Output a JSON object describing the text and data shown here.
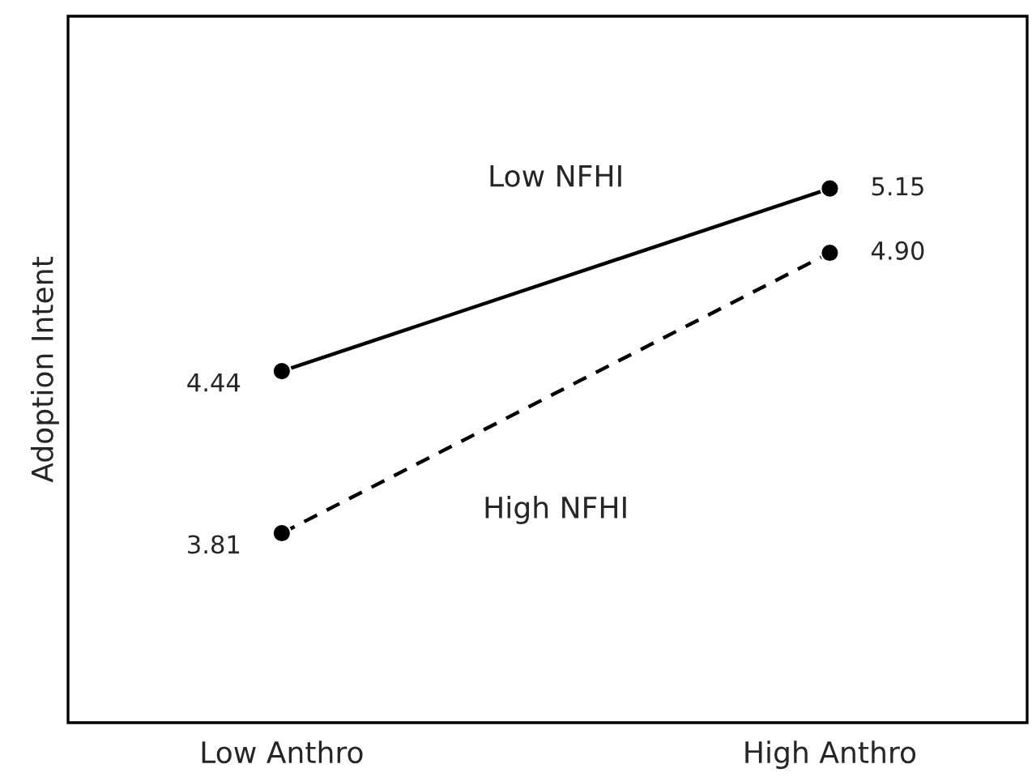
{
  "chart_data": {
    "type": "line",
    "ylabel": "Adoption Intent",
    "categories": [
      "Low Anthro",
      "High Anthro"
    ],
    "series": [
      {
        "name": "Low NFHI",
        "color": "#000000",
        "values": [
          4.44,
          5.15
        ],
        "line_style": "solid"
      },
      {
        "name": "High NFHI",
        "color": "#000000",
        "values": [
          3.81,
          4.9
        ],
        "value_labels": [
          "3.81",
          "4.90"
        ],
        "line_style": "dashed"
      }
    ],
    "data_labels": true,
    "marker": "circle",
    "tick_labels": "x",
    "grid": false,
    "legend": false
  }
}
